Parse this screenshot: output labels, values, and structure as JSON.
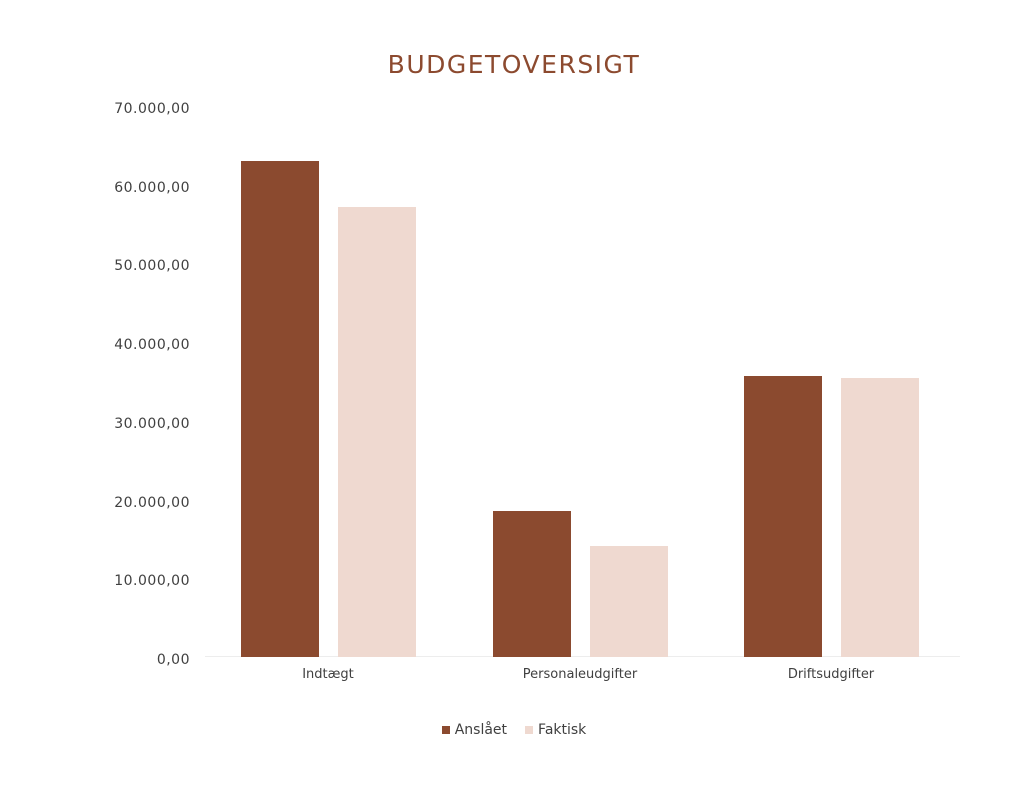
{
  "chart_data": {
    "type": "bar",
    "title": "BUDGETOVERSIGT",
    "categories": [
      "Indtægt",
      "Personaleudgifter",
      "Driftsudgifter"
    ],
    "series": [
      {
        "name": "Anslået",
        "color": "#8b4a2f",
        "values": [
          63000,
          18500,
          35700
        ]
      },
      {
        "name": "Faktisk",
        "color": "#efd9d0",
        "values": [
          57200,
          14100,
          35400
        ]
      }
    ],
    "xlabel": "",
    "ylabel": "",
    "ylim": [
      0,
      70000
    ],
    "yticks": [
      0,
      10000,
      20000,
      30000,
      40000,
      50000,
      60000,
      70000
    ],
    "ytick_labels": [
      "0,00",
      "10.000,00",
      "20.000,00",
      "30.000,00",
      "40.000,00",
      "50.000,00",
      "60.000,00",
      "70.000,00"
    ],
    "grid": false,
    "legend_position": "bottom"
  },
  "colors": {
    "title": "#8c4a2f",
    "anslaaet": "#8b4a2f",
    "faktisk": "#efd9d0",
    "text": "#404040"
  }
}
